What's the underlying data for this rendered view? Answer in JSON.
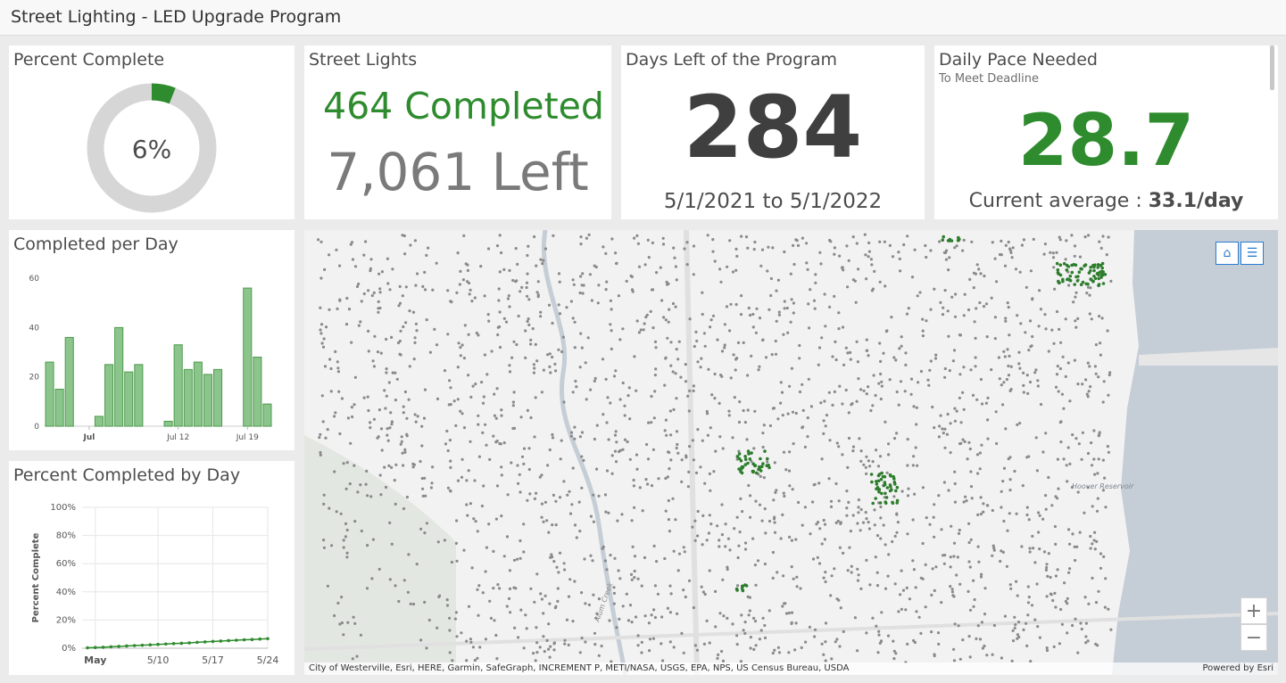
{
  "app": {
    "title": "Street Lighting - LED Upgrade Program"
  },
  "percent_complete": {
    "title": "Percent Complete",
    "value_label": "6%",
    "fraction": 0.06
  },
  "street_lights": {
    "title": "Street Lights",
    "completed": "464 Completed",
    "left": "7,061 Left"
  },
  "days_left": {
    "title": "Days Left of the Program",
    "value": "284",
    "range": "5/1/2021 to 5/1/2022"
  },
  "daily_pace": {
    "title": "Daily Pace Needed",
    "subtitle": "To Meet Deadline",
    "value": "28.7",
    "avg_label": "Current average : ",
    "avg_value": "33.1/day"
  },
  "completed_per_day": {
    "title": "Completed per Day",
    "chart_data": {
      "type": "bar",
      "title": "Completed per Day",
      "values": [
        26,
        15,
        36,
        null,
        null,
        4,
        25,
        40,
        22,
        25,
        null,
        null,
        2,
        33,
        23,
        26,
        21,
        23,
        null,
        null,
        56,
        28,
        9
      ],
      "ylim": [
        0,
        60
      ],
      "yticks": [
        "0",
        "20",
        "40",
        "60"
      ],
      "xticks": [
        {
          "label": "Jul",
          "index": 4,
          "bold": true
        },
        {
          "label": "Jul 12",
          "index": 13,
          "bold": false
        },
        {
          "label": "Jul 19",
          "index": 20,
          "bold": false
        }
      ]
    }
  },
  "percent_by_day": {
    "title": "Percent Completed by Day",
    "chart_data": {
      "type": "line",
      "title": "Percent Completed by Day",
      "ylabel": "Percent Complete",
      "ylim": [
        0,
        100
      ],
      "yticks": [
        "0%",
        "20%",
        "40%",
        "60%",
        "80%",
        "100%"
      ],
      "x": [
        1,
        2,
        3,
        4,
        5,
        6,
        7,
        8,
        9,
        10,
        11,
        12,
        13,
        14,
        15,
        16,
        17,
        18,
        19,
        20,
        21,
        22,
        23,
        24
      ],
      "values": [
        0.3,
        0.5,
        0.7,
        1.0,
        1.3,
        1.6,
        1.9,
        2.1,
        2.4,
        2.7,
        3.0,
        3.3,
        3.5,
        3.8,
        4.2,
        4.5,
        4.8,
        5.1,
        5.4,
        5.7,
        6.0,
        6.2,
        6.5,
        6.8
      ],
      "xticks": [
        {
          "label": "May",
          "day": 2,
          "bold": true
        },
        {
          "label": "5/10",
          "day": 10,
          "bold": false
        },
        {
          "label": "5/17",
          "day": 17,
          "bold": false
        },
        {
          "label": "5/24",
          "day": 24,
          "bold": false
        }
      ]
    }
  },
  "map": {
    "attribution": "City of Westerville, Esri, HERE, Garmin, SafeGraph, INCREMENT P, METI/NASA, USGS, EPA, NPS, US Census Bureau, USDA",
    "powered_by": "Powered by Esri",
    "labels": {
      "reservoir": "Hoover Reservoir",
      "creek": "Alum Creek"
    },
    "zoom_in": "+",
    "zoom_out": "−",
    "colors": {
      "completed": "#2e7d2e",
      "remaining": "#8a8a8a",
      "water": "#c5cdd6",
      "park": "#e3e7e1"
    }
  },
  "colors": {
    "accent_green": "#2e8b2e",
    "bar_fill": "#8cc58c",
    "bar_stroke": "#4d9a4d",
    "line": "#2e8b2e"
  }
}
